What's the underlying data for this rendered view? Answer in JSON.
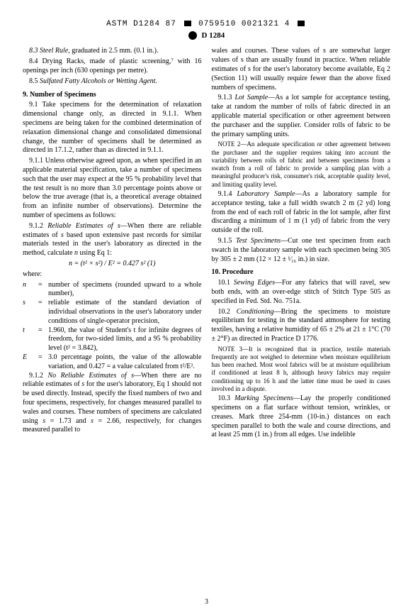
{
  "header": {
    "top_code_left": "ASTM D1284 87",
    "top_code_right": "0759510 0021321 4",
    "doc_code": "D 1284"
  },
  "left": {
    "p8_3": "8.3 Steel Rule, graduated in 2.5 mm. (0.1 in.).",
    "p8_4": "8.4 Drying Racks, made of plastic screening,⁷ with 16 openings per inch (630 openings per metre).",
    "p8_5": "8.5 Sulfated Fatty Alcohols or Wetting Agent.",
    "s9": "9. Number of Specimens",
    "p9_1": "9.1 Take specimens for the determination of relaxation dimensional change only, as directed in 9.1.1. When specimens are being taken for the combined determination of relaxation dimensional change and consolidated dimensional change, the number of specimens shall be determined as directed in 17.1.2, rather than as directed in 9.1.1.",
    "p9_1_1": "9.1.1 Unless otherwise agreed upon, as when specified in an applicable material specification, take a number of specimens such that the user may expect at the 95 % probability level that the test result is no more than 3.0 percentage points above or below the true average (that is, a theoretical average obtained from an infinite number of observations). Determine the number of specimens as follows:",
    "p9_1_2": "9.1.2 Reliable Estimates of s—When there are reliable estimates of s based upon extensive past records for similar materials tested in the user's laboratory as directed in the method, calculate n using Eq 1:",
    "eq1": "n = (t² × s²) / E² = 0.427 s²            (1)",
    "where": "where:",
    "def_n": "number of specimens (rounded upward to a whole number),",
    "def_s": "reliable estimate of the standard deviation of individual observations in the user's laboratory under conditions of single-operator precision,",
    "def_t": "1.960, the value of Student's t for infinite degrees of freedom, for two-sided limits, and a 95 % probability level (t² = 3.842),",
    "def_E": "3.0 percentage points, the value of the allowable variation, and 0.427 = a value calculated from t²/E².",
    "p9_1_2b": "9.1.2 No Reliable Estimates of s—When there are no reliable estimates of s for the user's laboratory, Eq 1 should not be used directly. Instead, specify the fixed numbers of two and four specimens, respectively, for changes measured parallel to wales and courses. These numbers of specimens are calculated using s = 1.73 and s = 2.66, respectively, for changes measured parallel to"
  },
  "right": {
    "cont": "wales and courses. These values of s are somewhat larger values of s than are usually found in practice. When reliable estimates of s for the user's laboratory become available, Eq 2 (Section 11) will usually require fewer than the above fixed numbers of specimens.",
    "p9_1_3": "9.1.3 Lot Sample—As a lot sample for acceptance testing, take at random the number of rolls of fabric directed in an applicable material specification or other agreement between the purchaser and the supplier. Consider rolls of fabric to be the primary sampling units.",
    "note2": "NOTE 2—An adequate specification or other agreement between the purchaser and the supplier requires taking into account the variability between rolls of fabric and between specimens from a swatch from a roll of fabric to provide a sampling plan with a meaningful producer's risk, consumer's risk, acceptable quality level, and limiting quality level.",
    "p9_1_4": "9.1.4 Laboratory Sample—As a laboratory sample for acceptance testing, take a full width swatch 2 m (2 yd) long from the end of each roll of fabric in the lot sample, after first discarding a minimum of 1 m (1 yd) of fabric from the very outside of the roll.",
    "p9_1_5": "9.1.5 Test Specimens—Cut one test specimen from each swatch in the laboratory sample with each specimen being 305 by 305 ± 2 mm (12 × 12 ± ¹⁄₁₆ in.) in size.",
    "s10": "10. Procedure",
    "p10_1": "10.1 Sewing Edges—For any fabrics that will ravel, sew both ends, with an over-edge stitch of Stitch Type 505 as specified in Fed. Std. No. 751a.",
    "p10_2": "10.2 Conditioning—Bring the specimens to moisture equilibrium for testing in the standard atmosphere for testing textiles, having a relative humidity of 65 ± 2% at 21 ± 1°C (70 ± 2°F) as directed in Practice D 1776.",
    "note3": "NOTE 3—It is recognized that in practice, textile materials frequently are not weighed to determine when moisture equilibrium has been reached. Most wool fabrics will be at moisture equilibrium if conditioned at least 8 h, although heavy fabrics may require conditioning up to 16 h and the latter time must be used in cases involved in a dispute.",
    "p10_3": "10.3 Marking Specimens—Lay the properly conditioned specimens on a flat surface without tension, wrinkles, or creases. Mark three 254-mm (10-in.) distances on each specimen parallel to both the wale and course directions, and at least 25 mm (1 in.) from all edges. Use indelible"
  },
  "footer": {
    "page": "3"
  }
}
